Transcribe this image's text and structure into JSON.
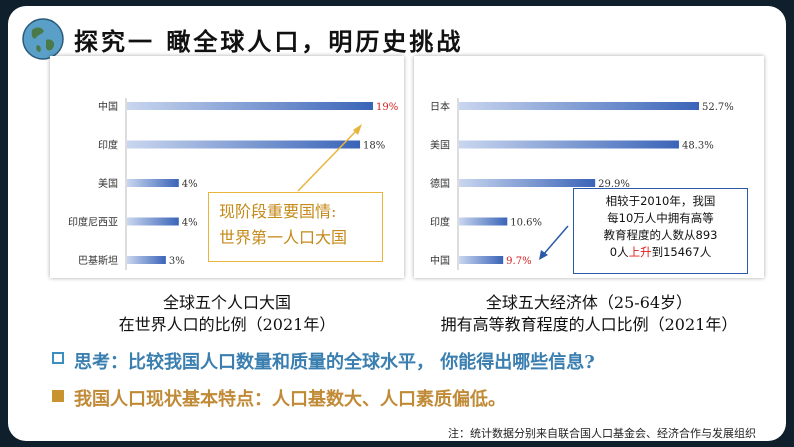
{
  "title": "探究一 瞰全球人口，明历史挑战",
  "chart_data": [
    {
      "type": "bar",
      "orientation": "horizontal",
      "categories": [
        "中国",
        "印度",
        "美国",
        "印度尼西亚",
        "巴基斯坦"
      ],
      "values": [
        19,
        18,
        4,
        4,
        3
      ],
      "value_labels": [
        "19%",
        "18%",
        "4%",
        "4%",
        "3%"
      ],
      "highlight_index": 0,
      "highlight_color": "#d42020",
      "bar_color": "#3a64b8",
      "caption_line1": "全球五个人口大国",
      "caption_line2": "在世界人口的比例（2021年）"
    },
    {
      "type": "bar",
      "orientation": "horizontal",
      "categories": [
        "日本",
        "美国",
        "德国",
        "印度",
        "中国"
      ],
      "values": [
        52.7,
        48.3,
        29.9,
        10.6,
        9.7
      ],
      "value_labels": [
        "52.7%",
        "48.3%",
        "29.9%",
        "10.6%",
        "9.7%"
      ],
      "highlight_index": 4,
      "highlight_color": "#d42020",
      "bar_color": "#3a64b8",
      "caption_line1": "全球五大经济体（25-64岁）",
      "caption_line2": "拥有高等教育程度的人口比例（2021年）"
    }
  ],
  "callout1": {
    "line1": "现阶段重要国情:",
    "line2": "世界第一人口大国"
  },
  "callout2": {
    "line1": "相较于2010年，我国",
    "line2": "每10万人中拥有高等",
    "line3": "教育程度的人数从893",
    "line4a": "0人",
    "line4b": "上升",
    "line4c": "到15467人"
  },
  "think": "思考：比较我国人口数量和质量的全球水平， 你能得出哪些信息?",
  "feature": "我国人口现状基本特点：人口基数大、人口素质偏低。",
  "note": "注：统计数据分别来自联合国人口基金会、经济合作与发展组织",
  "colors": {
    "think": "#3a7fb0",
    "feature": "#c08a36",
    "callout1_border": "#e8b53a",
    "callout2_border": "#2a5aa8"
  }
}
